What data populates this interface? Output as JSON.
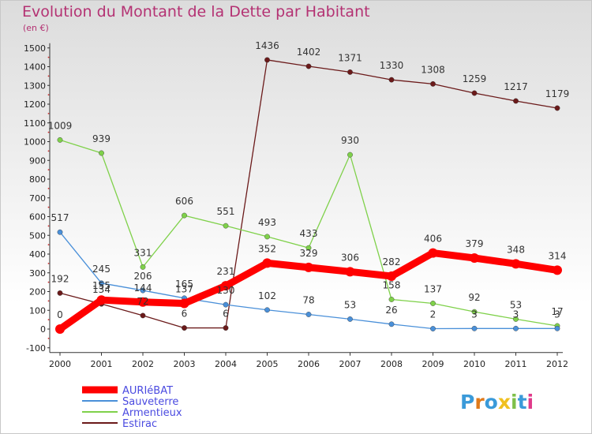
{
  "title": "Evolution du Montant de la Dette par Habitant",
  "subtitle": "(en €)",
  "watermark": "Proxiti",
  "chart_data": {
    "type": "line",
    "title": "Evolution du Montant de la Dette par Habitant",
    "ylabel": "(en €)",
    "xlabel": "",
    "x": [
      "2000",
      "2001",
      "2002",
      "2003",
      "2004",
      "2005",
      "2006",
      "2007",
      "2008",
      "2009",
      "2010",
      "2011",
      "2012"
    ],
    "y_ticks": [
      "-100",
      "0",
      "100",
      "200",
      "300",
      "400",
      "500",
      "600",
      "700",
      "800",
      "900",
      "1000",
      "1100",
      "1200",
      "1300",
      "1400",
      "1500"
    ],
    "ylim": [
      -100,
      1500
    ],
    "grid": false,
    "legend_position": "bottom-left",
    "series": [
      {
        "name": "AURIéBAT",
        "color": "#ff0000",
        "values": [
          0,
          155,
          144,
          137,
          231,
          352,
          329,
          306,
          282,
          406,
          379,
          348,
          314
        ],
        "labels": [
          "0",
          "155",
          "144",
          "137",
          "231",
          "352",
          "329",
          "306",
          "282",
          "406",
          "379",
          "348",
          "314"
        ]
      },
      {
        "name": "Sauveterre",
        "color": "#4a90d9",
        "values": [
          517,
          245,
          206,
          165,
          130,
          102,
          78,
          53,
          26,
          2,
          3,
          3,
          3
        ],
        "labels": [
          "517",
          "245",
          "206",
          "165",
          "130",
          "102",
          "78",
          "53",
          "26",
          "2",
          "3",
          "3",
          "3"
        ]
      },
      {
        "name": "Armentieux",
        "color": "#7fd14a",
        "values": [
          1009,
          939,
          331,
          606,
          551,
          493,
          433,
          930,
          158,
          137,
          92,
          53,
          17
        ],
        "labels": [
          "1009",
          "939",
          "331",
          "606",
          "551",
          "493",
          "433",
          "930",
          "158",
          "137",
          "92",
          "53",
          "17"
        ]
      },
      {
        "name": "Estirac",
        "color": "#6b1a1a",
        "values": [
          192,
          134,
          72,
          6,
          6,
          1436,
          1402,
          1371,
          1330,
          1308,
          1259,
          1217,
          1179
        ],
        "labels": [
          "192",
          "134",
          "72",
          "6",
          "6",
          "1436",
          "1402",
          "1371",
          "1330",
          "1308",
          "1259",
          "1217",
          "1179"
        ]
      }
    ]
  }
}
